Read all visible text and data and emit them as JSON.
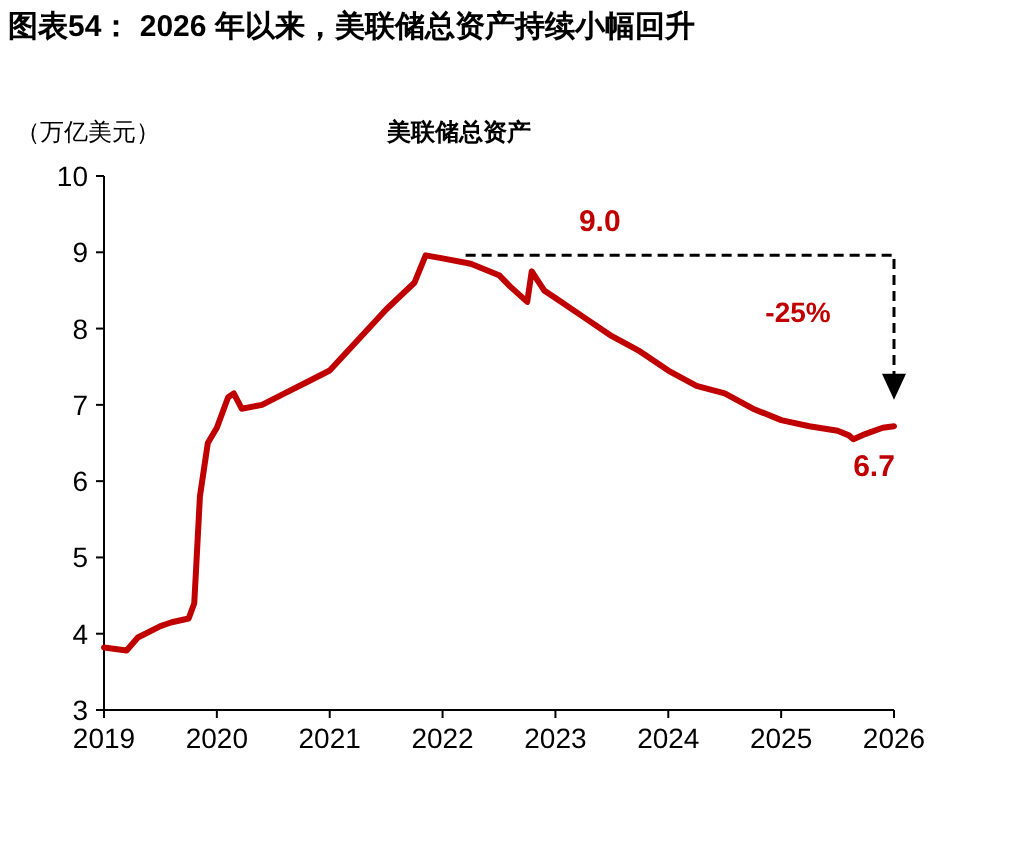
{
  "chart_data": {
    "type": "line",
    "title": "图表54：  2026 年以来，美联储总资产持续小幅回升",
    "subtitle": "美联储总资产",
    "ylabel": "（万亿美元）",
    "xlim": [
      2019,
      2026
    ],
    "ylim": [
      3,
      10
    ],
    "xticks": [
      2019,
      2020,
      2021,
      2022,
      2023,
      2024,
      2025,
      2026
    ],
    "yticks": [
      3,
      4,
      5,
      6,
      7,
      8,
      9,
      10
    ],
    "grid": false,
    "marker": "none",
    "line_style": "solid",
    "series": [
      {
        "color": "#c00000",
        "x": [
          2019.0,
          2019.2,
          2019.3,
          2019.5,
          2019.6,
          2019.75,
          2019.8,
          2019.85,
          2019.92,
          2020.0,
          2020.1,
          2020.15,
          2020.22,
          2020.4,
          2020.6,
          2020.8,
          2021.0,
          2021.25,
          2021.5,
          2021.75,
          2021.85,
          2022.0,
          2022.25,
          2022.5,
          2022.6,
          2022.75,
          2022.79,
          2022.9,
          2023.0,
          2023.25,
          2023.5,
          2023.75,
          2024.0,
          2024.25,
          2024.5,
          2024.75,
          2025.0,
          2025.25,
          2025.5,
          2025.6,
          2025.64,
          2025.75,
          2025.9,
          2026.0
        ],
        "values": [
          3.82,
          3.78,
          3.95,
          4.1,
          4.15,
          4.2,
          4.4,
          5.8,
          6.5,
          6.7,
          7.1,
          7.15,
          6.95,
          7.0,
          7.15,
          7.3,
          7.45,
          7.85,
          8.25,
          8.6,
          8.96,
          8.92,
          8.85,
          8.7,
          8.55,
          8.35,
          8.75,
          8.5,
          8.4,
          8.15,
          7.9,
          7.7,
          7.45,
          7.25,
          7.15,
          6.95,
          6.8,
          6.72,
          6.66,
          6.6,
          6.55,
          6.62,
          6.7,
          6.72
        ]
      }
    ],
    "annotations": [
      "9.0",
      "-25%",
      {
        "text": "6.7",
        "x": 2026,
        "y": 6.7
      }
    ]
  }
}
